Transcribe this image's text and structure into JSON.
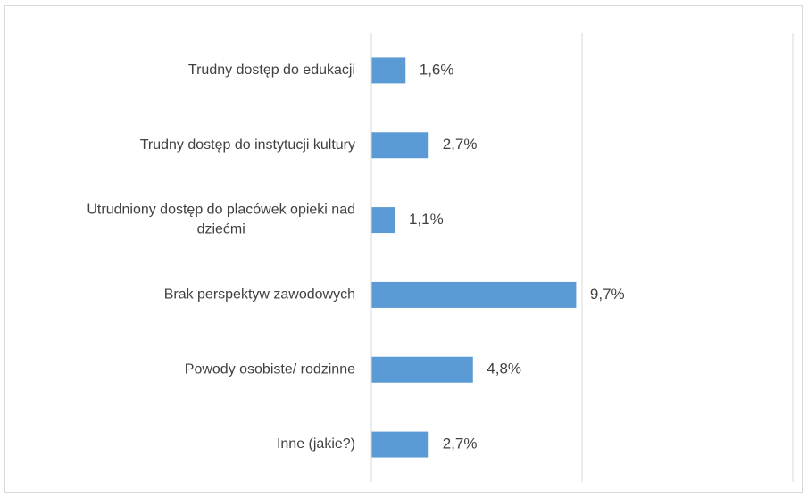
{
  "chart_data": {
    "type": "bar",
    "orientation": "horizontal",
    "title": "",
    "xlabel": "",
    "ylabel": "",
    "categories": [
      [
        "Trudny dostęp do edukacji"
      ],
      [
        "Trudny dostęp do instytucji kultury"
      ],
      [
        "Utrudniony dostęp do placówek opieki nad",
        "dziećmi"
      ],
      [
        "Brak perspektyw zawodowych"
      ],
      [
        "Powody osobiste/ rodzinne"
      ],
      [
        "Inne (jakie?)"
      ]
    ],
    "values": [
      1.6,
      2.7,
      1.1,
      9.7,
      4.8,
      2.7
    ],
    "value_labels": [
      "1,6%",
      "2,7%",
      "1,1%",
      "9,7%",
      "4,8%",
      "2,7%"
    ],
    "xlim": [
      0,
      20
    ],
    "gridlines_at": [
      0,
      10,
      20
    ],
    "x_tick_labels_shown": false,
    "grid": true,
    "legend": "none",
    "colors": {
      "bar": "#5b9bd5",
      "grid": "#d9d9d9",
      "text": "#404040"
    }
  }
}
